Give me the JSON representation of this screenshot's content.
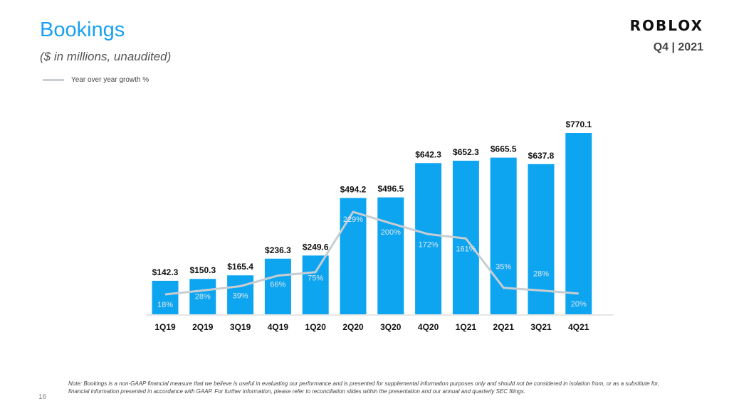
{
  "slide": {
    "title": "Bookings",
    "subtitle": "($ in millions,  unaudited)",
    "logo_text": "ROBLOX",
    "period": "Q4 | 2021",
    "page_number": "16",
    "footnote": "Note: Bookings is a non-GAAP financial measure that we believe is useful in evaluating our performance and is presented for supplemental information purposes only and should not be considered in isolation from, or as a substitute for, financial information presented in accordance with GAAP. For further information, please refer to reconciliation slides within the presentation and our annual and quarterly SEC filings."
  },
  "chart_data": {
    "type": "bar",
    "categories": [
      "1Q19",
      "2Q19",
      "3Q19",
      "4Q19",
      "1Q20",
      "2Q20",
      "3Q20",
      "4Q20",
      "1Q21",
      "2Q21",
      "3Q21",
      "4Q21"
    ],
    "series": [
      {
        "values": [
          142.3,
          150.3,
          165.4,
          236.3,
          249.6,
          494.2,
          496.5,
          642.3,
          652.3,
          665.5,
          637.8,
          770.1
        ],
        "labels": [
          "$142.3",
          "$150.3",
          "$165.4",
          "$236.3",
          "$249.6",
          "$494.2",
          "$496.5",
          "$642.3",
          "$652.3",
          "$665.5",
          "$637.8",
          "$770.1"
        ],
        "color": "#0ea5f0"
      },
      {
        "name": "Year over year growth %",
        "type": "line",
        "values": [
          18,
          28,
          39,
          66,
          75,
          229,
          200,
          172,
          161,
          35,
          28,
          20
        ],
        "labels": [
          "18%",
          "28%",
          "39%",
          "66%",
          "75%",
          "229%",
          "200%",
          "172%",
          "161%",
          "35%",
          "28%",
          "20%"
        ],
        "color": "#c8cdd2"
      }
    ],
    "ylim": [
      0,
      800
    ],
    "y2lim": [
      0,
      300
    ],
    "grid": false,
    "legend_position": "top-left"
  }
}
